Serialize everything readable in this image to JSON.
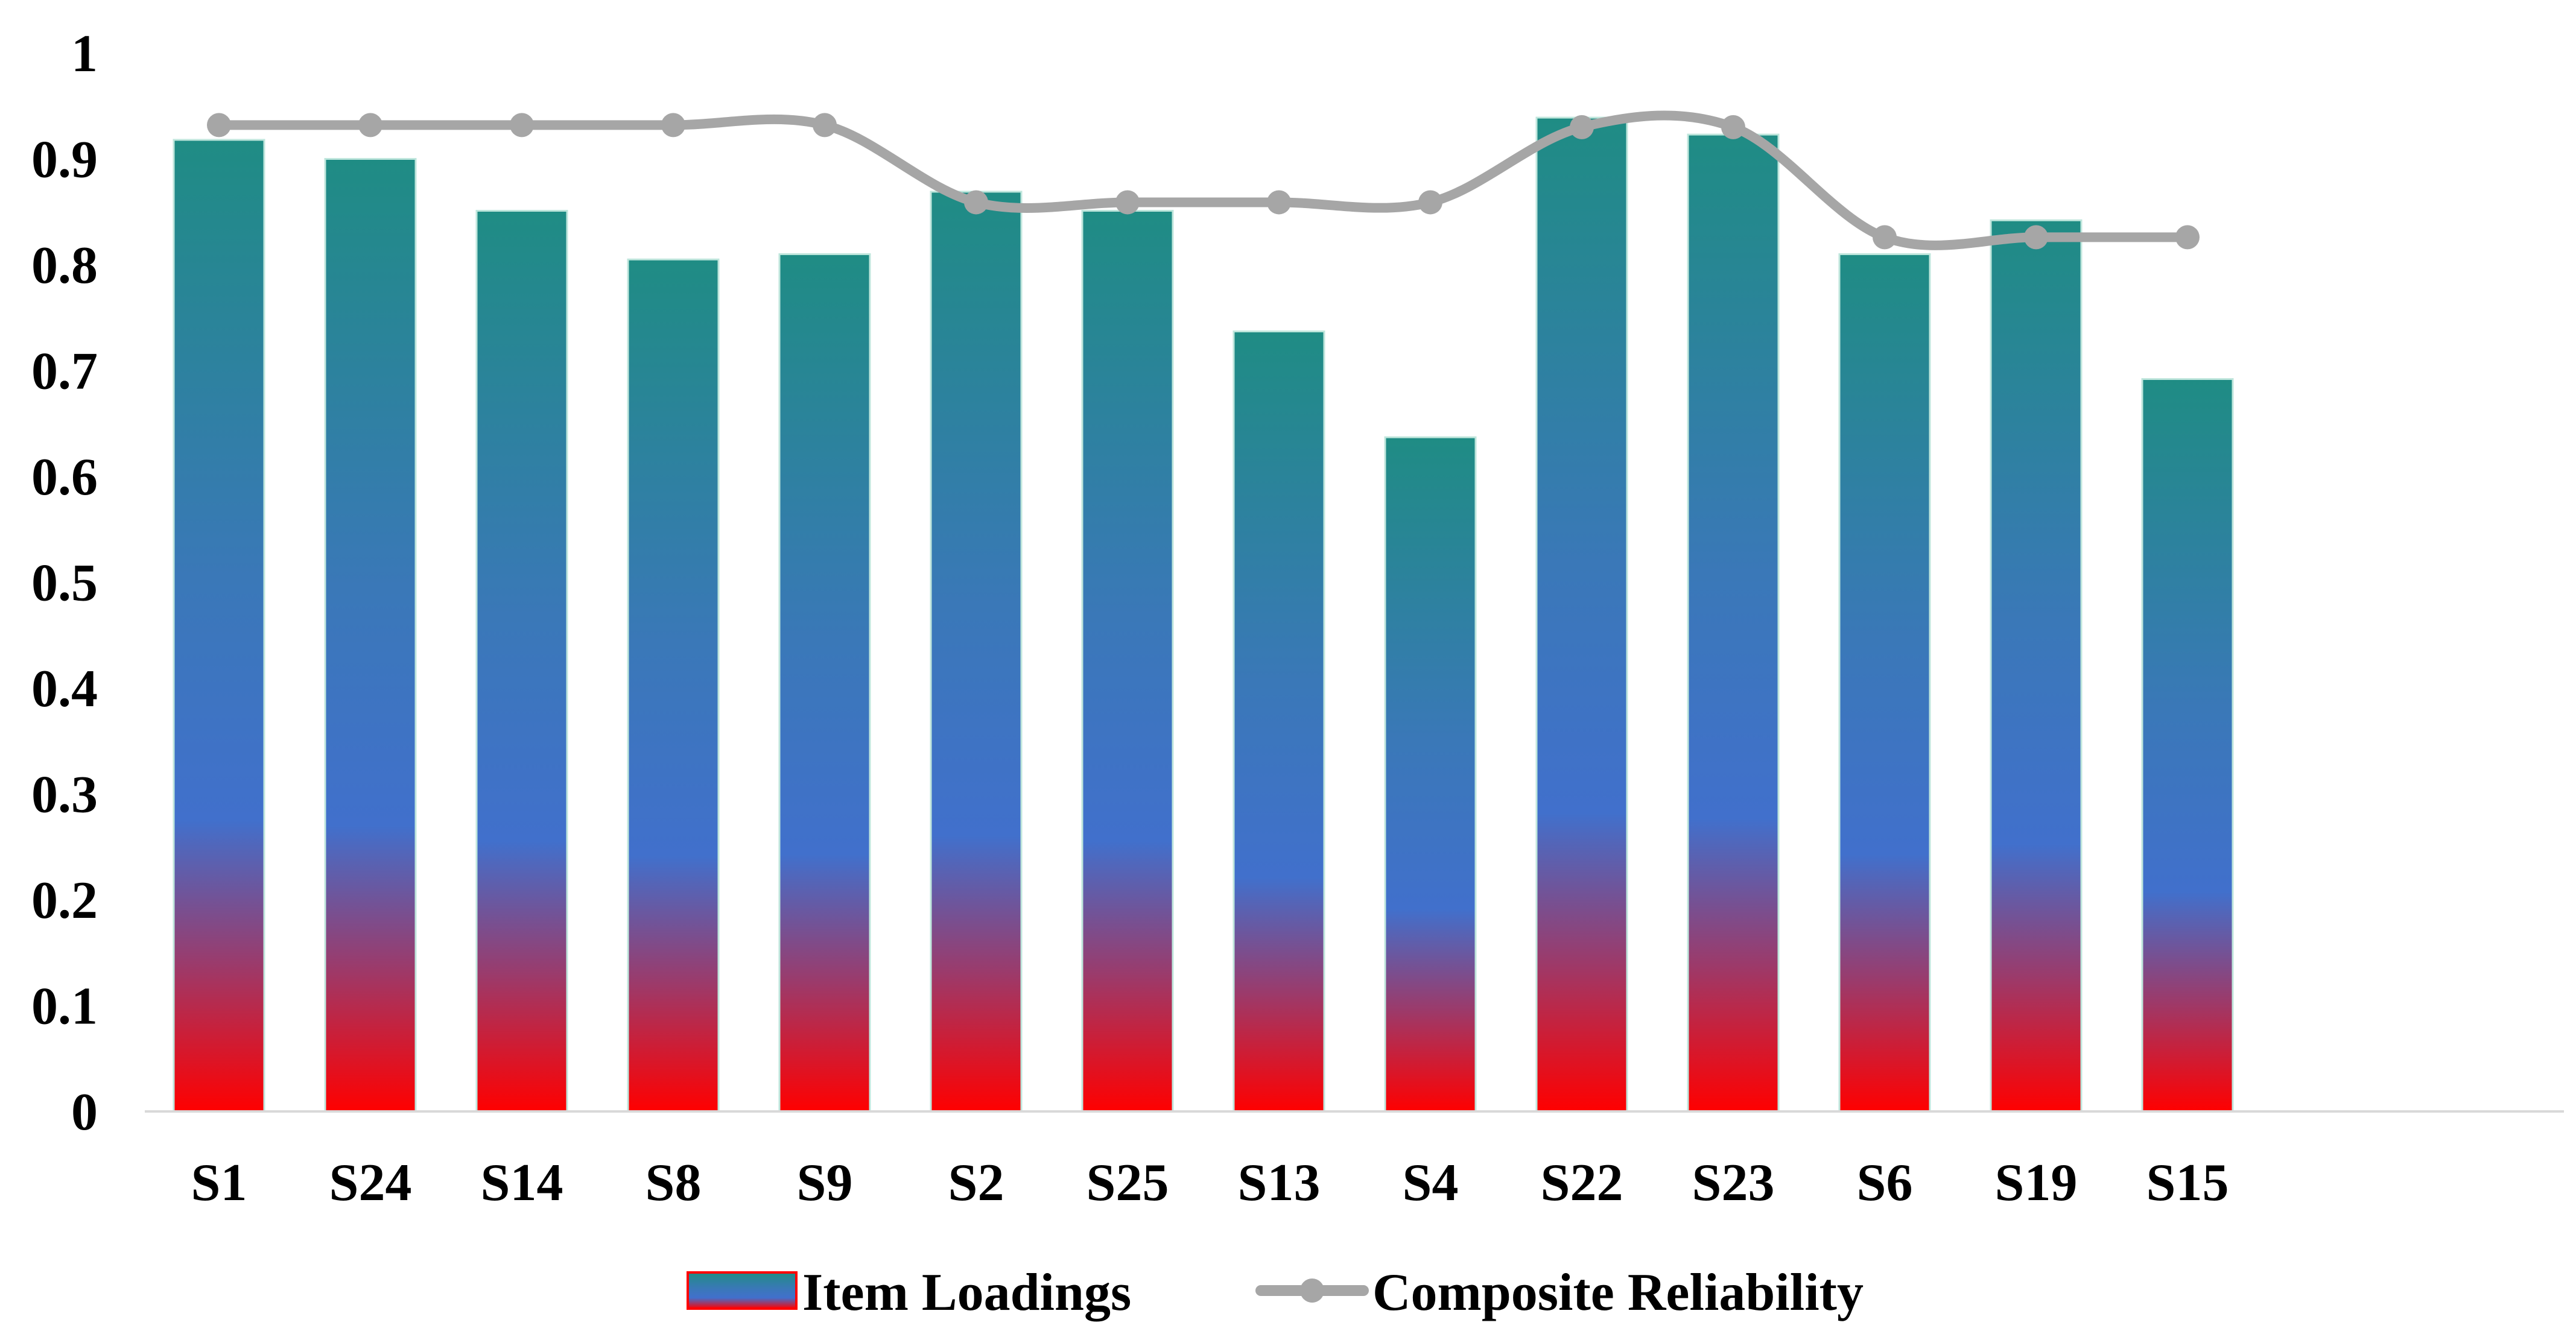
{
  "chart_data": {
    "type": "bar",
    "title": "",
    "xlabel": "",
    "ylabel": "",
    "ylim": [
      0,
      1
    ],
    "yticks": [
      "0",
      "0.1",
      "0.2",
      "0.3",
      "0.4",
      "0.5",
      "0.6",
      "0.7",
      "0.8",
      "0.9",
      "1"
    ],
    "categories": [
      "S1",
      "S24",
      "S14",
      "S8",
      "S9",
      "S2",
      "S25",
      "S13",
      "S4",
      "S22",
      "S23",
      "S6",
      "S19",
      "S15"
    ],
    "series": [
      {
        "name": "Item Loadings",
        "type": "bar",
        "values": [
          0.918,
          0.9,
          0.851,
          0.805,
          0.81,
          0.869,
          0.851,
          0.737,
          0.637,
          0.939,
          0.923,
          0.81,
          0.842,
          0.692
        ]
      },
      {
        "name": "Composite Reliability",
        "type": "line",
        "smooth": true,
        "values": [
          0.932,
          0.932,
          0.932,
          0.932,
          0.932,
          0.859,
          0.859,
          0.859,
          0.859,
          0.93,
          0.93,
          0.826,
          0.826,
          0.826
        ]
      }
    ],
    "legend_position": "bottom-center",
    "grid": false
  },
  "colors": {
    "bar_top": "#1f8c84",
    "bar_middle": "#3f6fc8",
    "bar_bottom": "#ff0000",
    "line": "#a6a6a6",
    "axis": "#d9d9d9",
    "text": "#000000"
  }
}
